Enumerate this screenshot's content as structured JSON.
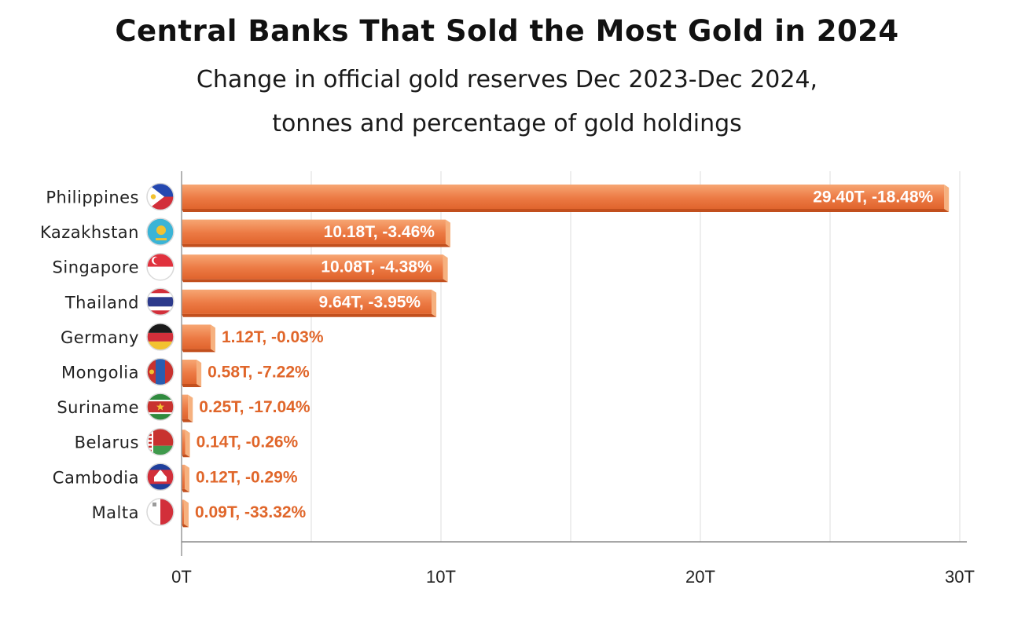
{
  "chart_data": {
    "type": "bar",
    "orientation": "horizontal",
    "title": "Central Banks That Sold the Most Gold in 2024",
    "subtitle_line1": "Change in official gold reserves Dec 2023-Dec 2024,",
    "subtitle_line2": "tonnes and percentage of gold holdings",
    "categories": [
      "Philippines",
      "Kazakhstan",
      "Singapore",
      "Thailand",
      "Germany",
      "Mongolia",
      "Suriname",
      "Belarus",
      "Cambodia",
      "Malta"
    ],
    "values": [
      29.4,
      10.18,
      10.08,
      9.64,
      1.12,
      0.58,
      0.25,
      0.14,
      0.12,
      0.09
    ],
    "data_labels": [
      "29.40T, -18.48%",
      "10.18T, -3.46%",
      "10.08T, -4.38%",
      "9.64T, -3.95%",
      "1.12T, -0.03%",
      "0.58T, -7.22%",
      "0.25T, -17.04%",
      "0.14T, -0.26%",
      "0.12T, -0.29%",
      "0.09T, -33.32%"
    ],
    "flag_icons": [
      "philippines-flag-icon",
      "kazakhstan-flag-icon",
      "singapore-flag-icon",
      "thailand-flag-icon",
      "germany-flag-icon",
      "mongolia-flag-icon",
      "suriname-flag-icon",
      "belarus-flag-icon",
      "cambodia-flag-icon",
      "malta-flag-icon"
    ],
    "x_ticks": [
      0,
      10,
      20,
      30
    ],
    "x_tick_labels": [
      "0T",
      "10T",
      "20T",
      "30T"
    ],
    "xlim": [
      0,
      30
    ],
    "grid": true,
    "bar_color": "#e8703a",
    "bar_highlight": "#f5a26d",
    "bar_shadow": "#c24f1d"
  }
}
